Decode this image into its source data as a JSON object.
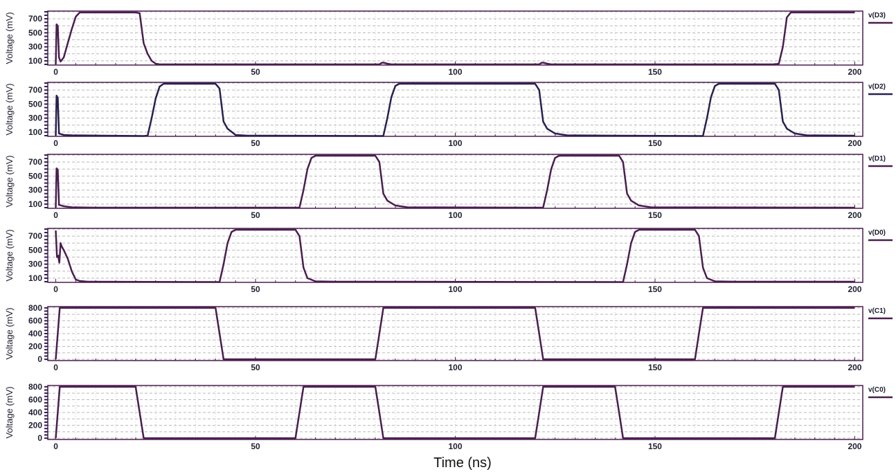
{
  "chart_data": {
    "type": "line",
    "xlabel": "Time (ns)",
    "xlim": [
      -2,
      202
    ],
    "x_ticks": [
      0,
      50,
      100,
      150,
      200
    ],
    "grid": true,
    "legend": "right",
    "panels": [
      {
        "name": "v(D3)",
        "ylabel": "Voltage (mV)",
        "ylim": [
          40,
          810
        ],
        "y_ticks": [
          100,
          300,
          500,
          700
        ],
        "color": "#4a1d4f",
        "points": [
          [
            0,
            50
          ],
          [
            0.2,
            620
          ],
          [
            0.5,
            600
          ],
          [
            0.8,
            150
          ],
          [
            1.2,
            90
          ],
          [
            2,
            150
          ],
          [
            3,
            350
          ],
          [
            4,
            550
          ],
          [
            5,
            730
          ],
          [
            6,
            790
          ],
          [
            20,
            790
          ],
          [
            21,
            780
          ],
          [
            22,
            350
          ],
          [
            23,
            200
          ],
          [
            24,
            100
          ],
          [
            25,
            60
          ],
          [
            26,
            50
          ],
          [
            81,
            50
          ],
          [
            81.5,
            70
          ],
          [
            82,
            75
          ],
          [
            83,
            60
          ],
          [
            84,
            50
          ],
          [
            121,
            50
          ],
          [
            121.5,
            70
          ],
          [
            122,
            75
          ],
          [
            123,
            60
          ],
          [
            124,
            50
          ],
          [
            180,
            50
          ],
          [
            181,
            60
          ],
          [
            182,
            300
          ],
          [
            183,
            720
          ],
          [
            184,
            790
          ],
          [
            200,
            790
          ]
        ]
      },
      {
        "name": "v(D2)",
        "ylabel": "Voltage (mV)",
        "ylim": [
          40,
          810
        ],
        "y_ticks": [
          100,
          300,
          500,
          700
        ],
        "color": "#2a1f4f",
        "points": [
          [
            0,
            50
          ],
          [
            0.2,
            620
          ],
          [
            0.5,
            590
          ],
          [
            0.8,
            80
          ],
          [
            2,
            60
          ],
          [
            4,
            55
          ],
          [
            12,
            50
          ],
          [
            22,
            45
          ],
          [
            23,
            50
          ],
          [
            24,
            300
          ],
          [
            25,
            580
          ],
          [
            26,
            750
          ],
          [
            27,
            790
          ],
          [
            40,
            790
          ],
          [
            41,
            720
          ],
          [
            42,
            250
          ],
          [
            43,
            150
          ],
          [
            45,
            60
          ],
          [
            48,
            50
          ],
          [
            82,
            45
          ],
          [
            83,
            300
          ],
          [
            84,
            600
          ],
          [
            85,
            760
          ],
          [
            86,
            790
          ],
          [
            120,
            790
          ],
          [
            121,
            700
          ],
          [
            122,
            250
          ],
          [
            123,
            150
          ],
          [
            125,
            80
          ],
          [
            128,
            55
          ],
          [
            140,
            50
          ],
          [
            162,
            45
          ],
          [
            163,
            300
          ],
          [
            164,
            600
          ],
          [
            165,
            760
          ],
          [
            166,
            790
          ],
          [
            180,
            790
          ],
          [
            181,
            700
          ],
          [
            182,
            250
          ],
          [
            183,
            150
          ],
          [
            185,
            80
          ],
          [
            188,
            55
          ],
          [
            200,
            50
          ]
        ]
      },
      {
        "name": "v(D1)",
        "ylabel": "Voltage (mV)",
        "ylim": [
          40,
          810
        ],
        "y_ticks": [
          100,
          300,
          500,
          700
        ],
        "color": "#4a1d4f",
        "points": [
          [
            0,
            50
          ],
          [
            0.2,
            610
          ],
          [
            0.5,
            590
          ],
          [
            0.8,
            90
          ],
          [
            2,
            70
          ],
          [
            4,
            55
          ],
          [
            10,
            50
          ],
          [
            61,
            50
          ],
          [
            62,
            300
          ],
          [
            63,
            600
          ],
          [
            64,
            760
          ],
          [
            65,
            790
          ],
          [
            80,
            790
          ],
          [
            81,
            700
          ],
          [
            82,
            250
          ],
          [
            83,
            150
          ],
          [
            85,
            80
          ],
          [
            88,
            55
          ],
          [
            122,
            50
          ],
          [
            123,
            300
          ],
          [
            124,
            600
          ],
          [
            125,
            760
          ],
          [
            126,
            790
          ],
          [
            141,
            790
          ],
          [
            142,
            700
          ],
          [
            143,
            250
          ],
          [
            144,
            150
          ],
          [
            146,
            80
          ],
          [
            149,
            55
          ],
          [
            200,
            50
          ]
        ]
      },
      {
        "name": "v(D0)",
        "ylabel": "Voltage (mV)",
        "ylim": [
          40,
          810
        ],
        "y_ticks": [
          100,
          300,
          500,
          700
        ],
        "color": "#4a1d4f",
        "points": [
          [
            0,
            780
          ],
          [
            0.3,
            400
          ],
          [
            0.6,
            420
          ],
          [
            0.9,
            320
          ],
          [
            1.2,
            600
          ],
          [
            1.5,
            550
          ],
          [
            2,
            500
          ],
          [
            3,
            380
          ],
          [
            4,
            200
          ],
          [
            5,
            80
          ],
          [
            6,
            60
          ],
          [
            8,
            50
          ],
          [
            41,
            45
          ],
          [
            42,
            300
          ],
          [
            43,
            600
          ],
          [
            44,
            760
          ],
          [
            45,
            790
          ],
          [
            60,
            790
          ],
          [
            61,
            700
          ],
          [
            62,
            250
          ],
          [
            63,
            100
          ],
          [
            65,
            55
          ],
          [
            70,
            50
          ],
          [
            142,
            45
          ],
          [
            143,
            300
          ],
          [
            144,
            600
          ],
          [
            145,
            760
          ],
          [
            146,
            790
          ],
          [
            160,
            790
          ],
          [
            161,
            700
          ],
          [
            162,
            250
          ],
          [
            163,
            100
          ],
          [
            165,
            55
          ],
          [
            170,
            50
          ],
          [
            200,
            50
          ]
        ]
      },
      {
        "name": "v(C1)",
        "ylabel": "Voltage (mV)",
        "ylim": [
          -20,
          820
        ],
        "y_ticks": [
          0,
          200,
          400,
          600,
          800
        ],
        "color": "#4a1d4f",
        "points": [
          [
            0,
            0
          ],
          [
            0.5,
            400
          ],
          [
            1,
            800
          ],
          [
            40,
            800
          ],
          [
            41,
            400
          ],
          [
            42,
            0
          ],
          [
            80,
            0
          ],
          [
            81,
            400
          ],
          [
            82,
            800
          ],
          [
            120,
            800
          ],
          [
            121,
            400
          ],
          [
            122,
            0
          ],
          [
            160,
            0
          ],
          [
            161,
            400
          ],
          [
            162,
            800
          ],
          [
            200,
            800
          ]
        ]
      },
      {
        "name": "v(C0)",
        "ylabel": "Voltage (mV)",
        "ylim": [
          -20,
          820
        ],
        "y_ticks": [
          0,
          200,
          400,
          600,
          800
        ],
        "color": "#4a1d4f",
        "points": [
          [
            0,
            0
          ],
          [
            0.5,
            400
          ],
          [
            1,
            800
          ],
          [
            20,
            800
          ],
          [
            21,
            400
          ],
          [
            22,
            0
          ],
          [
            60,
            0
          ],
          [
            61,
            400
          ],
          [
            62,
            800
          ],
          [
            80,
            800
          ],
          [
            81,
            400
          ],
          [
            82,
            0
          ],
          [
            120,
            0
          ],
          [
            121,
            400
          ],
          [
            122,
            800
          ],
          [
            140,
            800
          ],
          [
            141,
            400
          ],
          [
            142,
            0
          ],
          [
            180,
            0
          ],
          [
            181,
            400
          ],
          [
            182,
            800
          ],
          [
            200,
            800
          ]
        ]
      }
    ]
  }
}
